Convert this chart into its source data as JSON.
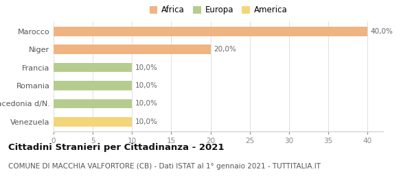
{
  "categories": [
    "Marocco",
    "Niger",
    "Francia",
    "Romania",
    "Macedonia d/N.",
    "Venezuela"
  ],
  "values": [
    40.0,
    20.0,
    10.0,
    10.0,
    10.0,
    10.0
  ],
  "bar_colors": [
    "#f0b482",
    "#f0b482",
    "#b5cc8e",
    "#b5cc8e",
    "#b5cc8e",
    "#f5d57a"
  ],
  "labels": [
    "40,0%",
    "20,0%",
    "10,0%",
    "10,0%",
    "10,0%",
    "10,0%"
  ],
  "legend": [
    {
      "label": "Africa",
      "color": "#f0b482"
    },
    {
      "label": "Europa",
      "color": "#b5cc8e"
    },
    {
      "label": "America",
      "color": "#f5d57a"
    }
  ],
  "xlim": [
    0,
    42
  ],
  "xticks": [
    0,
    5,
    10,
    15,
    20,
    25,
    30,
    35,
    40
  ],
  "title": "Cittadini Stranieri per Cittadinanza - 2021",
  "subtitle": "COMUNE DI MACCHIA VALFORTORE (CB) - Dati ISTAT al 1° gennaio 2021 - TUTTITALIA.IT",
  "title_fontsize": 9.5,
  "subtitle_fontsize": 7.5,
  "background_color": "#ffffff",
  "bar_height": 0.52
}
